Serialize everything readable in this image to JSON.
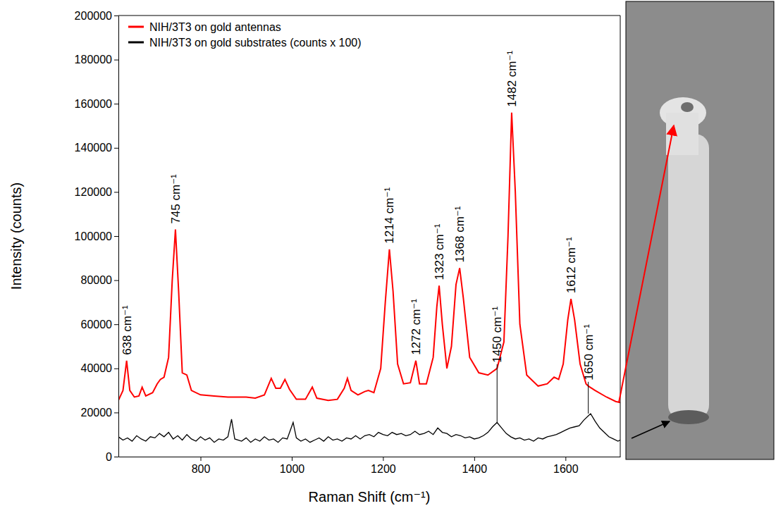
{
  "chart_data": {
    "type": "line",
    "x_label": "Raman Shift (cm⁻¹)",
    "y_label": "Intensity (counts)",
    "xlim": [
      620,
      1720
    ],
    "xticks": [
      800,
      1000,
      1200,
      1400,
      1600
    ],
    "ylim": [
      0,
      200000
    ],
    "yticks": [
      0,
      20000,
      40000,
      60000,
      80000,
      100000,
      120000,
      140000,
      160000,
      180000,
      200000
    ],
    "grid": false,
    "legend": "top-left",
    "series": [
      {
        "name": "NIH/3T3 on gold antennas",
        "color": "#ff0000",
        "x": [
          620,
          630,
          638,
          645,
          655,
          665,
          672,
          680,
          695,
          705,
          712,
          720,
          730,
          738,
          745,
          752,
          760,
          770,
          780,
          800,
          830,
          860,
          880,
          900,
          920,
          940,
          955,
          965,
          975,
          985,
          995,
          1010,
          1030,
          1045,
          1055,
          1080,
          1100,
          1115,
          1122,
          1130,
          1145,
          1160,
          1168,
          1180,
          1195,
          1205,
          1214,
          1222,
          1232,
          1245,
          1260,
          1272,
          1280,
          1295,
          1310,
          1318,
          1323,
          1330,
          1340,
          1350,
          1360,
          1368,
          1376,
          1390,
          1410,
          1430,
          1450,
          1465,
          1474,
          1482,
          1490,
          1500,
          1515,
          1540,
          1560,
          1575,
          1585,
          1595,
          1605,
          1612,
          1620,
          1632,
          1645,
          1650,
          1665,
          1690,
          1710,
          1720
        ],
        "values": [
          25500,
          30000,
          43500,
          30000,
          27000,
          27500,
          31500,
          27500,
          29000,
          33000,
          35000,
          36000,
          45000,
          80000,
          103000,
          75000,
          38000,
          37000,
          30000,
          28000,
          27500,
          27000,
          27000,
          27000,
          26500,
          28000,
          35500,
          31000,
          31000,
          35000,
          30500,
          26000,
          26000,
          31500,
          26500,
          25500,
          26000,
          31000,
          35500,
          30000,
          28000,
          29500,
          30000,
          29000,
          40000,
          70000,
          94000,
          75000,
          42000,
          33000,
          33500,
          43500,
          33000,
          33000,
          45000,
          68000,
          77500,
          60000,
          40000,
          50000,
          78000,
          85500,
          72000,
          45000,
          38000,
          37000,
          40000,
          52000,
          100000,
          156000,
          120000,
          60000,
          37000,
          32000,
          33000,
          36000,
          35000,
          42000,
          62000,
          71500,
          62000,
          42000,
          33000,
          32000,
          30000,
          27000,
          25000,
          24500
        ]
      },
      {
        "name": "NIH/3T3 on gold substrates (counts x 100)",
        "color": "#000000",
        "x": [
          620,
          630,
          640,
          650,
          660,
          670,
          680,
          690,
          700,
          710,
          720,
          730,
          740,
          750,
          760,
          770,
          780,
          790,
          800,
          810,
          820,
          830,
          840,
          850,
          860,
          868,
          875,
          890,
          900,
          910,
          920,
          930,
          940,
          950,
          960,
          970,
          980,
          990,
          1003,
          1010,
          1020,
          1030,
          1040,
          1050,
          1060,
          1070,
          1080,
          1090,
          1100,
          1110,
          1120,
          1130,
          1140,
          1150,
          1160,
          1170,
          1180,
          1190,
          1200,
          1210,
          1220,
          1230,
          1240,
          1250,
          1260,
          1270,
          1280,
          1290,
          1300,
          1310,
          1320,
          1330,
          1340,
          1350,
          1360,
          1370,
          1380,
          1390,
          1400,
          1410,
          1420,
          1430,
          1440,
          1450,
          1460,
          1470,
          1480,
          1490,
          1500,
          1510,
          1520,
          1530,
          1540,
          1550,
          1560,
          1570,
          1580,
          1590,
          1600,
          1610,
          1620,
          1630,
          1640,
          1655,
          1665,
          1675,
          1685,
          1695,
          1705,
          1715,
          1720
        ],
        "values": [
          9000,
          7500,
          8500,
          7000,
          9500,
          8000,
          7000,
          9000,
          8500,
          10500,
          9000,
          11000,
          8000,
          9500,
          7500,
          10000,
          8000,
          7000,
          9000,
          7500,
          8500,
          6500,
          8000,
          7500,
          9000,
          17000,
          8000,
          7000,
          8500,
          6500,
          8000,
          7000,
          9000,
          7500,
          8000,
          6500,
          8500,
          8000,
          15500,
          8500,
          7000,
          8000,
          6500,
          7500,
          8500,
          7000,
          9000,
          7500,
          8000,
          7000,
          8500,
          8000,
          9500,
          8000,
          9500,
          10000,
          9000,
          11000,
          10000,
          9500,
          11000,
          10000,
          10500,
          9500,
          10000,
          11500,
          10000,
          10500,
          11500,
          10000,
          13000,
          11000,
          10500,
          9000,
          10000,
          9500,
          8500,
          9000,
          8000,
          8500,
          9500,
          11000,
          13500,
          15500,
          13000,
          10500,
          9000,
          8000,
          8500,
          7500,
          8000,
          7000,
          8500,
          8000,
          9000,
          9500,
          10000,
          11000,
          12000,
          13000,
          13500,
          14000,
          16500,
          19500,
          16000,
          13000,
          11000,
          9000,
          8000,
          7000,
          7500
        ]
      }
    ],
    "annotations": [
      {
        "text": "638 cm⁻¹",
        "x": 638,
        "y": 43500
      },
      {
        "text": "745 cm⁻¹",
        "x": 745,
        "y": 103000
      },
      {
        "text": "1214 cm⁻¹",
        "x": 1214,
        "y": 94000
      },
      {
        "text": "1272 cm⁻¹",
        "x": 1272,
        "y": 43500
      },
      {
        "text": "1323 cm⁻¹",
        "x": 1323,
        "y": 77500
      },
      {
        "text": "1368 cm⁻¹",
        "x": 1368,
        "y": 85500
      },
      {
        "text": "1450 cm⁻¹",
        "x": 1450,
        "y": 15500
      },
      {
        "text": "1482 cm⁻¹",
        "x": 1482,
        "y": 156000
      },
      {
        "text": "1612 cm⁻¹",
        "x": 1612,
        "y": 71500
      },
      {
        "text": "1650 cm⁻¹",
        "x": 1650,
        "y": 19500
      }
    ]
  }
}
